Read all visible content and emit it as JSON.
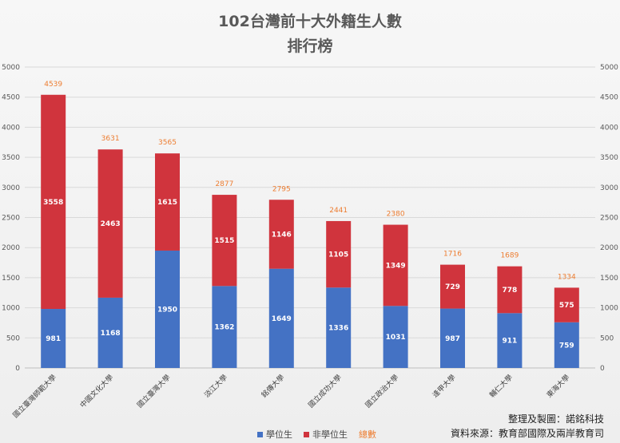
{
  "chart_data": {
    "type": "bar",
    "stacked": true,
    "title_line1": "102台灣前十大外籍生人數",
    "title_line2": "排行榜",
    "categories": [
      "國立臺灣師範大學",
      "中國文化大學",
      "國立臺灣大學",
      "淡江大學",
      "銘傳大學",
      "國立成功大學",
      "國立政治大學",
      "逢甲大學",
      "輔仁大學",
      "東海大學"
    ],
    "series": [
      {
        "name": "學位生",
        "color": "#4472c4",
        "values": [
          981,
          1168,
          1950,
          1362,
          1649,
          1336,
          1031,
          987,
          911,
          759
        ]
      },
      {
        "name": "非學位生",
        "color": "#d0343d",
        "values": [
          3558,
          2463,
          1615,
          1515,
          1146,
          1105,
          1349,
          729,
          778,
          575
        ]
      }
    ],
    "totals_series": {
      "name": "總數",
      "color": "#ed7d31",
      "values": [
        4539,
        3631,
        3565,
        2877,
        2795,
        2441,
        2380,
        1716,
        1689,
        1334
      ]
    },
    "ylim": [
      0,
      5000
    ],
    "yticks": [
      "0",
      "500",
      "1000",
      "1500",
      "2000",
      "2500",
      "3000",
      "3500",
      "4000",
      "4500",
      "5000"
    ],
    "grid": true,
    "legend_position": "bottom-center"
  },
  "credits": {
    "line1": "整理及製圖：諾銘科技",
    "line2": "資料來源：教育部國際及兩岸教育司"
  }
}
